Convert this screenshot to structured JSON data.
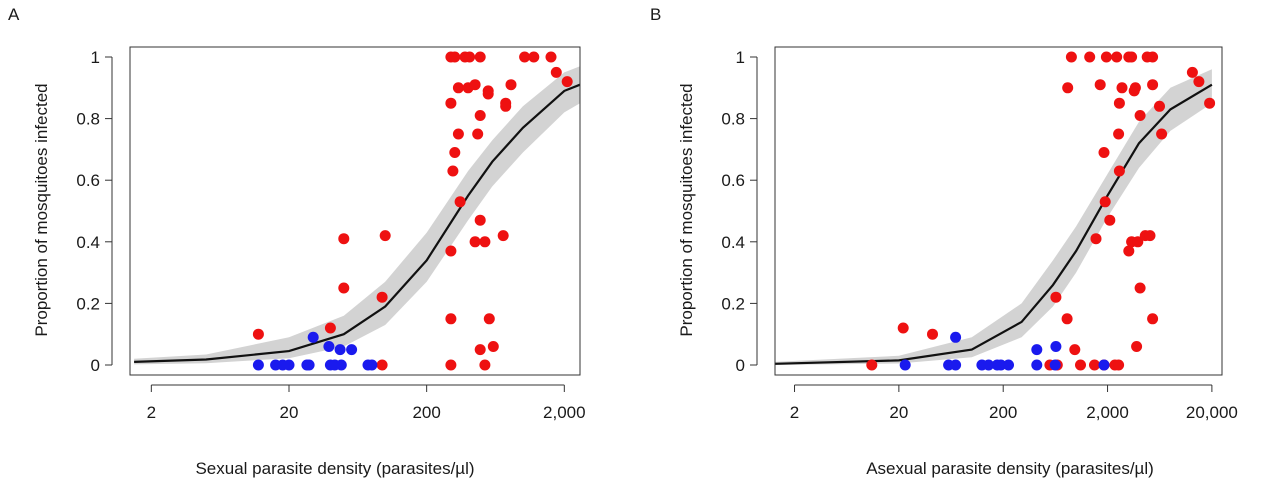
{
  "figure": {
    "panels": [
      {
        "label": "A",
        "xlabel": "Sexual parasite density (parasites/µl)",
        "ylabel": "Proportion of mosquitoes infected"
      },
      {
        "label": "B",
        "xlabel": "Asexual parasite density (parasites/µl)",
        "ylabel": "Proportion of mosquitoes infected"
      }
    ]
  },
  "colors": {
    "infected": "#ee1111",
    "uninfected": "#1a1aee",
    "curve": "#111111",
    "ci_band": "#d3d3d3",
    "axis": "#333333"
  },
  "chart_data": [
    {
      "type": "scatter",
      "panel": "A",
      "xlabel": "Sexual parasite density (parasites/µl)",
      "ylabel": "Proportion of mosquitoes infected",
      "xscale": "log",
      "xlim": [
        1.4,
        2600
      ],
      "ylim": [
        0,
        1
      ],
      "xticks": [
        2,
        20,
        200,
        2000
      ],
      "xtick_labels": [
        "2",
        "20",
        "200",
        "2,000"
      ],
      "yticks": [
        0,
        0.2,
        0.4,
        0.6,
        0.8,
        1
      ],
      "ytick_labels": [
        "0",
        "0.2",
        "0.4",
        "0.6",
        "0.8",
        "1"
      ],
      "grid": false,
      "series": [
        {
          "kind": "red points",
          "points": [
            [
              12,
              0.1
            ],
            [
              40,
              0.12
            ],
            [
              50,
              0.41
            ],
            [
              50,
              0.25
            ],
            [
              100,
              0.42
            ],
            [
              95,
              0.22
            ],
            [
              95,
              0
            ],
            [
              300,
              1
            ],
            [
              320,
              1
            ],
            [
              380,
              1
            ],
            [
              410,
              1
            ],
            [
              490,
              1
            ],
            [
              1030,
              1
            ],
            [
              1200,
              1
            ],
            [
              1600,
              1
            ],
            [
              1750,
              0.95
            ],
            [
              2100,
              0.92
            ],
            [
              300,
              0.85
            ],
            [
              340,
              0.9
            ],
            [
              400,
              0.9
            ],
            [
              450,
              0.91
            ],
            [
              560,
              0.89
            ],
            [
              560,
              0.88
            ],
            [
              490,
              0.81
            ],
            [
              750,
              0.85
            ],
            [
              750,
              0.84
            ],
            [
              820,
              0.91
            ],
            [
              340,
              0.75
            ],
            [
              470,
              0.75
            ],
            [
              320,
              0.69
            ],
            [
              310,
              0.63
            ],
            [
              350,
              0.53
            ],
            [
              300,
              0.37
            ],
            [
              490,
              0.47
            ],
            [
              450,
              0.4
            ],
            [
              530,
              0.4
            ],
            [
              720,
              0.42
            ],
            [
              300,
              0.15
            ],
            [
              570,
              0.15
            ],
            [
              490,
              0.05
            ],
            [
              610,
              0.06
            ],
            [
              300,
              0
            ],
            [
              530,
              0
            ]
          ]
        },
        {
          "kind": "blue points",
          "points": [
            [
              12,
              0
            ],
            [
              16,
              0
            ],
            [
              18,
              0
            ],
            [
              20,
              0
            ],
            [
              27,
              0
            ],
            [
              28,
              0
            ],
            [
              40,
              0
            ],
            [
              43,
              0
            ],
            [
              48,
              0
            ],
            [
              75,
              0
            ],
            [
              80,
              0
            ],
            [
              30,
              0.09
            ],
            [
              39,
              0.06
            ],
            [
              47,
              0.05
            ],
            [
              57,
              0.05
            ]
          ]
        },
        {
          "kind": "fitted logistic curve",
          "x": [
            1.5,
            5,
            20,
            50,
            100,
            200,
            400,
            600,
            1000,
            2000,
            2600
          ],
          "y": [
            0.01,
            0.018,
            0.045,
            0.1,
            0.19,
            0.34,
            0.55,
            0.66,
            0.77,
            0.89,
            0.91
          ],
          "lower": [
            0.002,
            0.006,
            0.022,
            0.06,
            0.13,
            0.27,
            0.47,
            0.58,
            0.69,
            0.82,
            0.85
          ],
          "upper": [
            0.02,
            0.034,
            0.09,
            0.16,
            0.27,
            0.43,
            0.63,
            0.73,
            0.84,
            0.95,
            0.97
          ]
        }
      ]
    },
    {
      "type": "scatter",
      "panel": "B",
      "xlabel": "Asexual parasite density (parasites/µl)",
      "ylabel": "Proportion of mosquitoes infected",
      "xscale": "log",
      "xlim": [
        1.3,
        25000
      ],
      "ylim": [
        0,
        1
      ],
      "xticks": [
        2,
        20,
        200,
        2000,
        20000
      ],
      "xtick_labels": [
        "2",
        "20",
        "200",
        "2,000",
        "20,000"
      ],
      "yticks": [
        0,
        0.2,
        0.4,
        0.6,
        0.8,
        1
      ],
      "ytick_labels": [
        "0",
        "0.2",
        "0.4",
        "0.6",
        "0.8",
        "1"
      ],
      "grid": false,
      "series": [
        {
          "kind": "red points",
          "points": [
            [
              11,
              0
            ],
            [
              22,
              0.12
            ],
            [
              42,
              0.1
            ],
            [
              830,
              0.9
            ],
            [
              900,
              1
            ],
            [
              1350,
              1
            ],
            [
              1950,
              1
            ],
            [
              2450,
              1
            ],
            [
              3200,
              1
            ],
            [
              3400,
              1
            ],
            [
              4800,
              1
            ],
            [
              5400,
              1
            ],
            [
              1700,
              0.91
            ],
            [
              2750,
              0.9
            ],
            [
              3600,
              0.89
            ],
            [
              3700,
              0.9
            ],
            [
              2600,
              0.85
            ],
            [
              5400,
              0.91
            ],
            [
              6300,
              0.84
            ],
            [
              13000,
              0.95
            ],
            [
              15000,
              0.92
            ],
            [
              19000,
              0.85
            ],
            [
              1850,
              0.69
            ],
            [
              2550,
              0.75
            ],
            [
              4100,
              0.81
            ],
            [
              6600,
              0.75
            ],
            [
              2600,
              0.63
            ],
            [
              1900,
              0.53
            ],
            [
              2100,
              0.47
            ],
            [
              1550,
              0.41
            ],
            [
              3200,
              0.37
            ],
            [
              3400,
              0.4
            ],
            [
              3900,
              0.4
            ],
            [
              4600,
              0.42
            ],
            [
              5100,
              0.42
            ],
            [
              4100,
              0.25
            ],
            [
              5400,
              0.15
            ],
            [
              640,
              0.22
            ],
            [
              820,
              0.15
            ],
            [
              3800,
              0.06
            ],
            [
              970,
              0.05
            ],
            [
              560,
              0
            ],
            [
              660,
              0
            ],
            [
              1100,
              0
            ],
            [
              1500,
              0
            ],
            [
              1850,
              0
            ],
            [
              2350,
              0
            ],
            [
              2550,
              0
            ]
          ]
        },
        {
          "kind": "blue points",
          "points": [
            [
              23,
              0
            ],
            [
              60,
              0
            ],
            [
              70,
              0
            ],
            [
              125,
              0
            ],
            [
              145,
              0
            ],
            [
              175,
              0
            ],
            [
              190,
              0
            ],
            [
              225,
              0
            ],
            [
              420,
              0
            ],
            [
              630,
              0
            ],
            [
              1850,
              0
            ],
            [
              70,
              0.09
            ],
            [
              420,
              0.05
            ],
            [
              640,
              0.06
            ]
          ]
        },
        {
          "kind": "fitted logistic curve",
          "x": [
            1.3,
            20,
            100,
            300,
            600,
            1000,
            2000,
            4000,
            8000,
            20000
          ],
          "y": [
            0.004,
            0.015,
            0.05,
            0.14,
            0.26,
            0.37,
            0.55,
            0.72,
            0.83,
            0.91
          ],
          "lower": [
            0.0,
            0.005,
            0.025,
            0.09,
            0.19,
            0.3,
            0.48,
            0.64,
            0.76,
            0.85
          ],
          "upper": [
            0.01,
            0.03,
            0.09,
            0.2,
            0.34,
            0.45,
            0.62,
            0.79,
            0.9,
            0.96
          ]
        }
      ]
    }
  ]
}
